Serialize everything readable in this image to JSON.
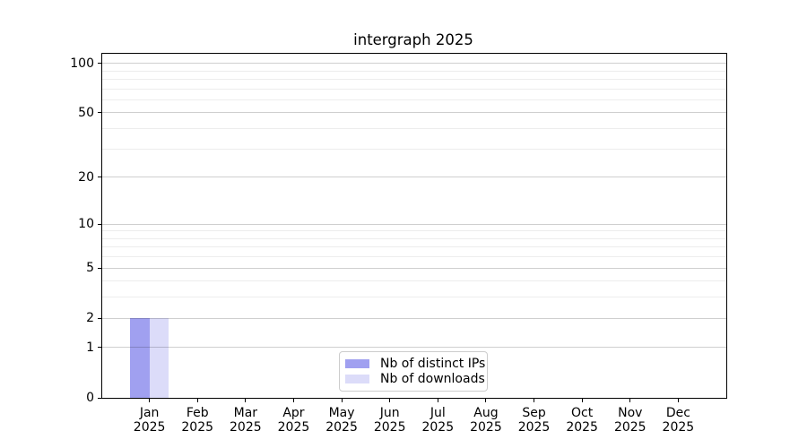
{
  "title": "intergraph 2025",
  "chart_data": {
    "type": "bar",
    "title": "intergraph 2025",
    "x_categories": [
      {
        "month": "Jan",
        "year": "2025"
      },
      {
        "month": "Feb",
        "year": "2025"
      },
      {
        "month": "Mar",
        "year": "2025"
      },
      {
        "month": "Apr",
        "year": "2025"
      },
      {
        "month": "May",
        "year": "2025"
      },
      {
        "month": "Jun",
        "year": "2025"
      },
      {
        "month": "Jul",
        "year": "2025"
      },
      {
        "month": "Aug",
        "year": "2025"
      },
      {
        "month": "Sep",
        "year": "2025"
      },
      {
        "month": "Oct",
        "year": "2025"
      },
      {
        "month": "Nov",
        "year": "2025"
      },
      {
        "month": "Dec",
        "year": "2025"
      }
    ],
    "series": [
      {
        "name": "Nb of distinct IPs",
        "color": "#a0a0f0",
        "values": [
          2,
          0,
          0,
          0,
          0,
          0,
          0,
          0,
          0,
          0,
          0,
          0
        ]
      },
      {
        "name": "Nb of downloads",
        "color": "#dcdcf9",
        "values": [
          2,
          0,
          0,
          0,
          0,
          0,
          0,
          0,
          0,
          0,
          0,
          0
        ]
      }
    ],
    "y_axis": {
      "scale": "log1p",
      "major_ticks": [
        0,
        1,
        2,
        5,
        10,
        20,
        50,
        100
      ],
      "minor_ticks": [
        3,
        4,
        6,
        7,
        8,
        9,
        30,
        40,
        60,
        70,
        80,
        90
      ],
      "range": [
        0,
        116
      ]
    },
    "grid": {
      "orientation": "horizontal",
      "major_color": "#cfcfcf",
      "minor_color": "#ededed"
    },
    "legend": {
      "position": "bottom-center"
    },
    "spine_color": "#000000",
    "text_color": "#000000",
    "background": "#ffffff"
  }
}
